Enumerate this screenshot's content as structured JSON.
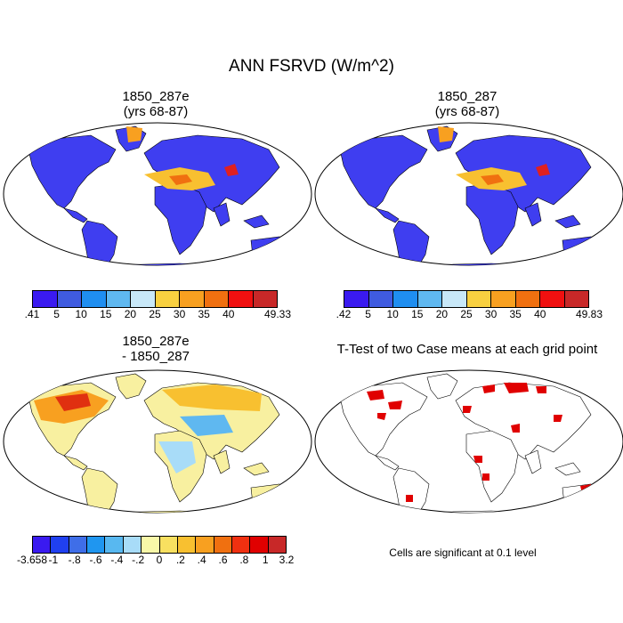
{
  "title": "ANN FSRVD (W/m^2)",
  "panels": [
    {
      "title_line1": "1850_287e",
      "title_line2": "(yrs 68-87)"
    },
    {
      "title_line1": "1850_287",
      "title_line2": "(yrs 68-87)"
    },
    {
      "title_line1": "1850_287e",
      "title_line2": "- 1850_287"
    },
    {
      "title_line1": "T-Test of two Case means at each grid point",
      "title_line2": ""
    }
  ],
  "colorbars": {
    "top_left": {
      "colors": [
        "#3a1af0",
        "#3f5be0",
        "#1f8ef0",
        "#5fb8f0",
        "#c8e8f8",
        "#f8d040",
        "#f8a020",
        "#f07010",
        "#f01010",
        "#c82828"
      ],
      "labels": [
        ".41",
        "5",
        "10",
        "15",
        "20",
        "25",
        "30",
        "35",
        "40",
        "49.33"
      ]
    },
    "top_right": {
      "colors": [
        "#3a1af0",
        "#3f5be0",
        "#1f8ef0",
        "#5fb8f0",
        "#c8e8f8",
        "#f8d040",
        "#f8a020",
        "#f07010",
        "#f01010",
        "#c82828"
      ],
      "labels": [
        ".42",
        "5",
        "10",
        "15",
        "20",
        "25",
        "30",
        "35",
        "40",
        "49.83"
      ]
    },
    "diff": {
      "colors": [
        "#3a1af0",
        "#2040f0",
        "#3f6ee8",
        "#1f96f0",
        "#58b8f0",
        "#a8dcf8",
        "#f8f8a8",
        "#f8e060",
        "#f8c030",
        "#f8a020",
        "#f07010",
        "#f03010",
        "#e00000",
        "#c82828"
      ],
      "labels": [
        "-3.658",
        "-1",
        "-.8",
        "-.6",
        "-.4",
        "-.2",
        "0",
        ".2",
        ".4",
        ".6",
        ".8",
        "1",
        "3.2"
      ]
    }
  },
  "significance_note": "Cells are significant at 0.1 level"
}
